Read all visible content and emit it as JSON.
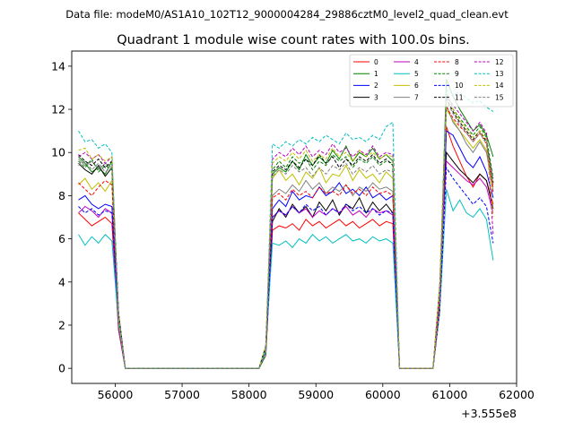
{
  "figure": {
    "suptitle": "Data file: modeM0/AS1A10_102T12_9000004284_29886cztM0_level2_quad_clean.evt"
  },
  "chart_data": {
    "type": "line",
    "title": "Quadrant 1 module wise count rates with 100.0s bins.",
    "xlabel": "",
    "ylabel": "",
    "x_offset_label": "+3.555e8",
    "xlim": [
      55350,
      62000
    ],
    "ylim": [
      -0.7,
      14.7
    ],
    "xticks": [
      56000,
      57000,
      58000,
      59000,
      60000,
      61000,
      62000
    ],
    "xtick_labels": [
      "56000",
      "57000",
      "58000",
      "59000",
      "60000",
      "61000",
      "62000"
    ],
    "yticks": [
      0,
      2,
      4,
      6,
      8,
      10,
      12,
      14
    ],
    "ytick_labels": [
      "0",
      "2",
      "4",
      "6",
      "8",
      "10",
      "12",
      "14"
    ],
    "grid": false,
    "legend_position": "top-right",
    "segments": [
      {
        "start": 55450,
        "count": 6,
        "dropout": 56050
      },
      {
        "start": 56150,
        "count": 21,
        "zero": true
      },
      {
        "start": 58250,
        "count": 19,
        "dropout": 58150
      },
      {
        "start": 60250,
        "count": 6,
        "zero": true
      },
      {
        "start": 61150,
        "count": 8,
        "dropout": 61050
      }
    ],
    "x": [
      55450,
      55550,
      55650,
      55750,
      55850,
      55950,
      56050,
      56150,
      56250,
      56350,
      56450,
      56550,
      56650,
      56750,
      56850,
      56950,
      57050,
      57150,
      57250,
      57350,
      57450,
      57550,
      57650,
      57750,
      57850,
      57950,
      58050,
      58150,
      58250,
      58350,
      58450,
      58550,
      58650,
      58750,
      58850,
      58950,
      59050,
      59150,
      59250,
      59350,
      59450,
      59550,
      59650,
      59750,
      59850,
      59950,
      60050,
      60150,
      60250,
      60350,
      60450,
      60550,
      60650,
      60750,
      60850,
      60950,
      61050,
      61150,
      61250,
      61350,
      61450,
      61550,
      61650,
      61750,
      61850
    ],
    "series": [
      {
        "name": "0",
        "color": "#ff0000",
        "dash": "solid",
        "level": [
          7.2,
          6.9,
          6.6,
          6.8,
          7.0,
          6.7
        ],
        "level2": [
          6.4,
          6.6,
          6.5,
          6.7,
          6.4,
          6.9,
          6.6,
          6.8,
          6.5,
          6.7,
          6.9,
          6.6,
          6.8,
          6.5,
          6.7,
          6.9,
          6.6,
          6.8,
          6.7
        ],
        "level3": [
          11.2,
          10.3,
          9.6,
          8.9,
          8.4,
          9.0,
          8.7,
          7.6
        ]
      },
      {
        "name": "1",
        "color": "#008000",
        "dash": "solid",
        "level": [
          9.8,
          9.5,
          9.1,
          9.3,
          9.0,
          9.6
        ],
        "level2": [
          9.0,
          9.3,
          9.1,
          9.6,
          9.2,
          9.9,
          9.4,
          9.8,
          9.5,
          10.1,
          9.7,
          10.3,
          9.6,
          10.0,
          9.8,
          10.2,
          9.7,
          9.9,
          9.6
        ],
        "level3": [
          13.4,
          12.6,
          12.0,
          11.5,
          11.0,
          11.3,
          10.8,
          9.8
        ]
      },
      {
        "name": "2",
        "color": "#0000ff",
        "dash": "solid",
        "level": [
          7.8,
          8.0,
          7.6,
          7.4,
          7.6,
          7.5
        ],
        "level2": [
          7.4,
          7.8,
          7.5,
          8.2,
          7.8,
          8.0,
          7.9,
          8.4,
          8.0,
          8.2,
          8.6,
          8.1,
          8.3,
          8.0,
          8.4,
          7.9,
          8.1,
          7.8,
          8.0
        ],
        "level3": [
          11.0,
          10.8,
          10.2,
          9.6,
          9.3,
          9.8,
          9.1,
          7.9
        ]
      },
      {
        "name": "3",
        "color": "#000000",
        "dash": "solid",
        "level": [
          9.5,
          9.2,
          9.0,
          9.4,
          8.9,
          9.3
        ],
        "level2": [
          6.8,
          7.4,
          7.0,
          7.6,
          7.2,
          7.5,
          7.0,
          7.7,
          7.3,
          7.8,
          7.1,
          7.6,
          7.4,
          7.9,
          7.2,
          7.7,
          7.3,
          7.6,
          7.2
        ],
        "level3": [
          10.0,
          9.6,
          9.2,
          8.9,
          8.6,
          9.0,
          8.7,
          7.4
        ]
      },
      {
        "name": "4",
        "color": "#bf00bf",
        "dash": "solid",
        "level": [
          7.2,
          7.5,
          7.3,
          7.0,
          7.4,
          7.2
        ],
        "level2": [
          7.0,
          7.3,
          7.1,
          7.5,
          7.2,
          7.4,
          7.0,
          7.3,
          7.1,
          7.4,
          7.2,
          7.5,
          7.1,
          7.3,
          7.0,
          7.4,
          7.2,
          7.3,
          7.1
        ],
        "level3": [
          9.6,
          9.3,
          9.0,
          8.7,
          8.5,
          8.8,
          8.4,
          7.2
        ]
      },
      {
        "name": "5",
        "color": "#00bfbf",
        "dash": "solid",
        "level": [
          6.2,
          5.7,
          6.1,
          5.8,
          6.2,
          5.9
        ],
        "level2": [
          5.8,
          5.7,
          5.9,
          5.6,
          6.0,
          5.8,
          6.2,
          5.9,
          6.1,
          5.8,
          6.0,
          6.2,
          5.9,
          6.0,
          5.8,
          6.1,
          5.9,
          6.0,
          5.8
        ],
        "level3": [
          8.3,
          7.3,
          7.8,
          7.2,
          7.0,
          7.4,
          6.9,
          5.0
        ]
      },
      {
        "name": "6",
        "color": "#bfbf00",
        "dash": "solid",
        "level": [
          8.5,
          8.8,
          8.3,
          8.6,
          8.2,
          8.7
        ],
        "level2": [
          8.8,
          9.2,
          8.7,
          9.0,
          8.5,
          9.1,
          8.8,
          9.3,
          8.6,
          9.0,
          8.9,
          9.4,
          8.7,
          9.2,
          8.8,
          9.0,
          8.6,
          9.1,
          8.8
        ],
        "level3": [
          12.0,
          11.5,
          11.0,
          10.6,
          10.2,
          10.6,
          10.1,
          8.4
        ]
      },
      {
        "name": "7",
        "color": "#808080",
        "dash": "solid",
        "level": [
          9.7,
          9.4,
          9.6,
          9.2,
          9.5,
          9.3
        ],
        "level2": [
          8.0,
          8.3,
          8.1,
          8.5,
          8.2,
          8.7,
          8.3,
          8.6,
          8.1,
          8.4,
          8.2,
          8.5,
          8.0,
          8.4,
          8.2,
          8.6,
          8.3,
          8.4,
          8.2
        ],
        "level3": [
          12.2,
          11.4,
          11.0,
          10.4,
          10.0,
          10.5,
          10.0,
          8.2
        ]
      },
      {
        "name": "8",
        "color": "#ff0000",
        "dash": "dashed",
        "level": [
          8.6,
          8.3,
          8.0,
          8.4,
          8.7,
          8.5
        ],
        "level2": [
          7.9,
          8.1,
          7.8,
          8.3,
          8.0,
          8.2,
          7.9,
          8.4,
          8.1,
          8.2,
          8.0,
          8.5,
          8.1,
          8.3,
          8.0,
          8.4,
          8.1,
          8.2,
          8.0
        ],
        "level3": [
          12.1,
          11.6,
          11.2,
          10.9,
          10.5,
          10.9,
          10.4,
          8.1
        ]
      },
      {
        "name": "9",
        "color": "#008000",
        "dash": "dashed",
        "level": [
          9.6,
          9.3,
          9.7,
          9.1,
          9.4,
          9.2
        ],
        "level2": [
          9.2,
          9.6,
          9.3,
          9.8,
          9.5,
          9.7,
          9.2,
          9.6,
          9.4,
          9.9,
          9.6,
          9.8,
          9.3,
          9.7,
          9.5,
          9.8,
          9.4,
          9.6,
          9.5
        ],
        "level3": [
          12.8,
          12.0,
          11.6,
          11.2,
          10.8,
          11.2,
          10.7,
          8.8
        ]
      },
      {
        "name": "10",
        "color": "#0000ff",
        "dash": "dashed",
        "level": [
          7.5,
          7.2,
          7.4,
          7.1,
          7.3,
          7.2
        ],
        "level2": [
          7.0,
          7.3,
          7.1,
          7.5,
          7.2,
          7.6,
          7.3,
          7.5,
          7.1,
          7.4,
          7.2,
          7.6,
          7.3,
          7.5,
          7.2,
          7.4,
          7.1,
          7.3,
          7.2
        ],
        "level3": [
          9.3,
          8.8,
          8.4,
          8.0,
          7.6,
          7.9,
          7.5,
          5.8
        ]
      },
      {
        "name": "11",
        "color": "#000000",
        "dash": "dashed",
        "level": [
          9.9,
          9.6,
          9.4,
          9.7,
          9.3,
          9.6
        ],
        "level2": [
          9.1,
          9.4,
          9.2,
          9.6,
          9.3,
          9.7,
          9.4,
          9.9,
          9.5,
          9.8,
          9.3,
          9.7,
          9.4,
          9.8,
          9.6,
          9.9,
          9.5,
          9.7,
          9.4
        ],
        "level3": [
          12.5,
          11.9,
          11.4,
          11.0,
          10.6,
          11.0,
          10.5,
          8.6
        ]
      },
      {
        "name": "12",
        "color": "#bf00bf",
        "dash": "dashed",
        "level": [
          9.8,
          10.0,
          9.7,
          9.9,
          9.5,
          9.8
        ],
        "level2": [
          9.7,
          10.0,
          9.8,
          10.2,
          9.9,
          10.3,
          9.8,
          10.1,
          9.9,
          10.4,
          10.0,
          10.2,
          9.8,
          10.1,
          9.9,
          10.3,
          9.8,
          10.0,
          9.9
        ],
        "level3": [
          12.6,
          12.2,
          11.8,
          11.4,
          11.0,
          11.4,
          10.9,
          6.2
        ]
      },
      {
        "name": "13",
        "color": "#00bfbf",
        "dash": "dashed",
        "level": [
          11.0,
          10.5,
          10.6,
          10.2,
          10.4,
          10.0
        ],
        "level2": [
          10.4,
          10.2,
          10.5,
          10.3,
          10.6,
          10.4,
          10.7,
          10.5,
          10.8,
          10.6,
          10.4,
          10.9,
          10.6,
          10.7,
          10.5,
          10.8,
          10.6,
          11.2,
          11.4
        ],
        "level3": [
          12.9,
          12.7,
          12.8,
          12.5,
          12.3,
          12.4,
          12.1,
          11.9
        ]
      },
      {
        "name": "14",
        "color": "#bfbf00",
        "dash": "dashed",
        "level": [
          10.1,
          10.2,
          9.7,
          9.9,
          9.6,
          9.8
        ],
        "level2": [
          9.5,
          9.8,
          9.6,
          10.0,
          9.7,
          10.1,
          9.6,
          9.9,
          9.7,
          10.2,
          9.8,
          10.0,
          9.6,
          10.1,
          9.8,
          10.0,
          9.7,
          9.9,
          9.8
        ],
        "level3": [
          12.3,
          12.0,
          11.5,
          11.1,
          10.7,
          11.0,
          10.6,
          7.0
        ]
      },
      {
        "name": "15",
        "color": "#808080",
        "dash": "dashed",
        "level": [
          9.4,
          9.6,
          9.2,
          9.5,
          9.1,
          9.3
        ],
        "level2": [
          8.9,
          9.2,
          9.0,
          9.4,
          9.1,
          9.3,
          8.9,
          9.3,
          9.0,
          9.4,
          9.2,
          9.5,
          9.0,
          9.3,
          9.1,
          9.4,
          9.0,
          9.2,
          9.1
        ],
        "level3": [
          12.4,
          11.8,
          11.3,
          10.9,
          10.5,
          10.9,
          10.4,
          8.5
        ]
      }
    ]
  }
}
